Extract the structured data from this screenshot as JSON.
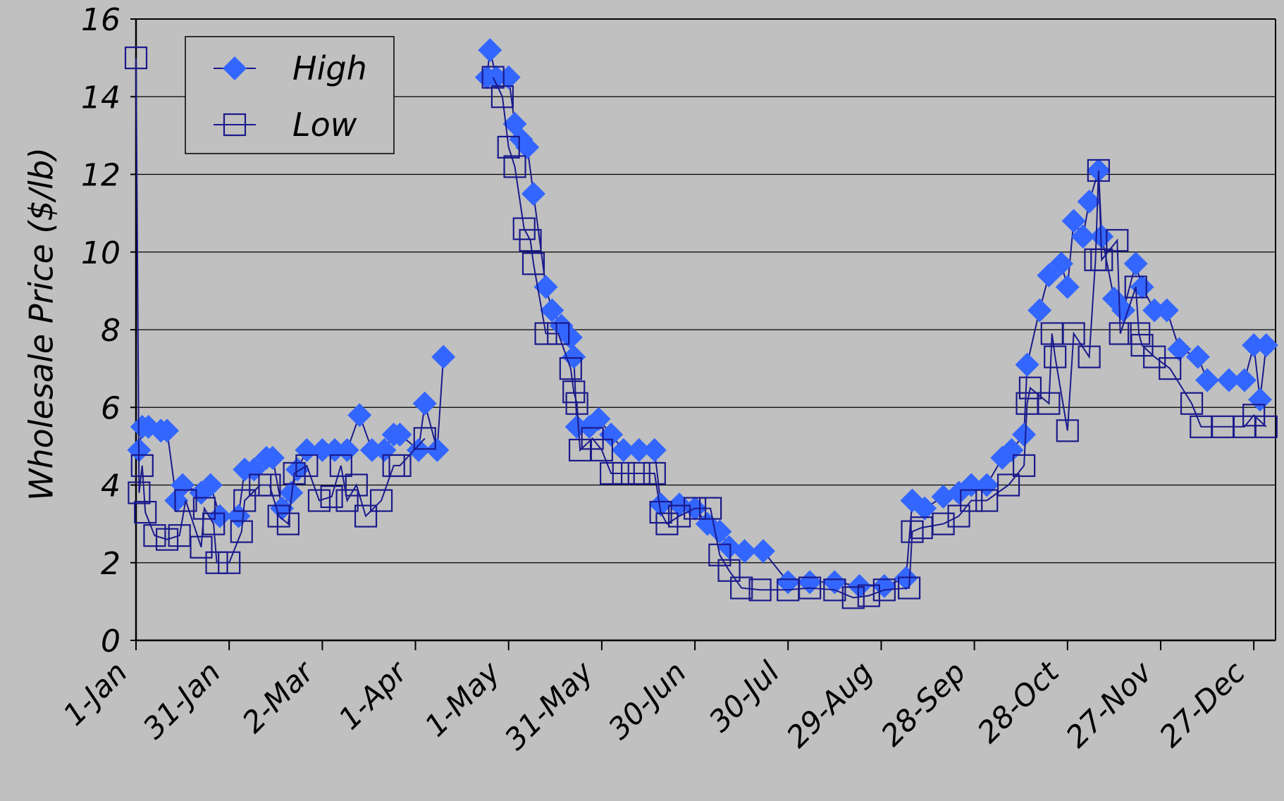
{
  "chart_data": {
    "type": "line",
    "ylabel": "Wholesale Price ($/lb)",
    "xlim": [
      0,
      367
    ],
    "ylim": [
      0,
      16
    ],
    "xticks": [
      {
        "value": 0,
        "label": "1-Jan"
      },
      {
        "value": 30,
        "label": "31-Jan"
      },
      {
        "value": 60,
        "label": "2-Mar"
      },
      {
        "value": 90,
        "label": "1-Apr"
      },
      {
        "value": 120,
        "label": "1-May"
      },
      {
        "value": 150,
        "label": "31-May"
      },
      {
        "value": 180,
        "label": "30-Jun"
      },
      {
        "value": 210,
        "label": "30-Jul"
      },
      {
        "value": 240,
        "label": "29-Aug"
      },
      {
        "value": 270,
        "label": "28-Sep"
      },
      {
        "value": 300,
        "label": "28-Oct"
      },
      {
        "value": 330,
        "label": "27-Nov"
      },
      {
        "value": 360,
        "label": "27-Dec"
      }
    ],
    "yticks": [
      0,
      2,
      4,
      6,
      8,
      10,
      12,
      14,
      16
    ],
    "grid": true,
    "legend": "upper left",
    "series": [
      {
        "name": "High",
        "color": "#3366ff",
        "marker": "diamond",
        "x": [
          1,
          2,
          4,
          8,
          10,
          13,
          15,
          21,
          24,
          27,
          33,
          35,
          38,
          42,
          44,
          47,
          50,
          52,
          55,
          60,
          64,
          68,
          72,
          76,
          80,
          83,
          85,
          91,
          93,
          97,
          99,
          106,
          113,
          114,
          116,
          120,
          122,
          124,
          126,
          128,
          132,
          134,
          137,
          140,
          141,
          142,
          146,
          149,
          153,
          157,
          162,
          167,
          169,
          175,
          180,
          184,
          188,
          191,
          196,
          202,
          210,
          217,
          225,
          233,
          241,
          248,
          250,
          254,
          260,
          265,
          269,
          274,
          279,
          282,
          286,
          287,
          291,
          294,
          298,
          300,
          302,
          305,
          307,
          310,
          311,
          315,
          318,
          322,
          324,
          328,
          332,
          336,
          342,
          345,
          352,
          357,
          360,
          362,
          364
        ],
        "values": [
          4.9,
          5.5,
          5.5,
          5.4,
          5.4,
          3.6,
          4.0,
          3.8,
          4.0,
          3.2,
          3.2,
          4.4,
          4.4,
          4.7,
          4.7,
          3.4,
          3.8,
          4.4,
          4.9,
          4.9,
          4.9,
          4.9,
          5.8,
          4.9,
          4.9,
          5.3,
          5.3,
          4.9,
          6.1,
          4.9,
          7.3,
          null,
          14.5,
          15.2,
          14.5,
          14.5,
          13.3,
          12.9,
          12.7,
          11.5,
          9.1,
          8.5,
          8.1,
          7.8,
          7.3,
          5.5,
          5.5,
          5.7,
          5.3,
          4.9,
          4.9,
          4.9,
          3.5,
          3.5,
          3.4,
          3.0,
          2.8,
          2.4,
          2.3,
          2.3,
          1.5,
          1.5,
          1.5,
          1.4,
          1.4,
          1.6,
          3.6,
          3.4,
          3.7,
          3.8,
          4.0,
          4.0,
          4.7,
          4.9,
          5.3,
          7.1,
          8.5,
          9.4,
          9.7,
          9.1,
          10.8,
          10.4,
          11.3,
          12.1,
          10.4,
          8.8,
          8.5,
          9.7,
          9.1,
          8.5,
          8.5,
          7.5,
          7.3,
          6.7,
          6.7,
          6.7,
          7.6,
          6.2,
          7.6
        ]
      },
      {
        "name": "Low",
        "color": "#1a1a8c",
        "marker": "square",
        "x": [
          0,
          1,
          2,
          3,
          6,
          10,
          14,
          16,
          21,
          22,
          25,
          26,
          30,
          34,
          35,
          40,
          43,
          46,
          49,
          51,
          55,
          59,
          63,
          66,
          68,
          71,
          74,
          79,
          83,
          85,
          93,
          104,
          115,
          118,
          120,
          122,
          125,
          127,
          128,
          132,
          136,
          140,
          141,
          142,
          143,
          147,
          150,
          153,
          157,
          162,
          167,
          169,
          171,
          175,
          180,
          185,
          188,
          191,
          195,
          201,
          210,
          217,
          225,
          231,
          236,
          241,
          249,
          250,
          253,
          260,
          265,
          269,
          274,
          281,
          286,
          287,
          288,
          294,
          295,
          296,
          300,
          302,
          307,
          309,
          310,
          311,
          316,
          317,
          322,
          323,
          324,
          328,
          333,
          340,
          343,
          350,
          357,
          360,
          364
        ],
        "values": [
          15.0,
          3.8,
          4.5,
          3.3,
          2.7,
          2.6,
          2.7,
          3.6,
          2.4,
          3.4,
          3.0,
          2.0,
          2.0,
          2.8,
          3.6,
          4.0,
          4.0,
          3.2,
          3.0,
          4.3,
          4.5,
          3.6,
          3.7,
          4.5,
          3.6,
          4.0,
          3.2,
          3.6,
          4.5,
          4.5,
          5.2,
          null,
          14.5,
          14.0,
          12.7,
          12.2,
          10.6,
          10.3,
          9.7,
          7.9,
          7.9,
          7.0,
          6.4,
          6.1,
          4.9,
          5.2,
          4.9,
          4.3,
          4.3,
          4.3,
          4.3,
          3.3,
          3.0,
          3.2,
          3.4,
          3.4,
          2.2,
          1.8,
          1.35,
          1.3,
          1.3,
          1.35,
          1.3,
          1.1,
          1.15,
          1.3,
          1.35,
          2.8,
          2.9,
          3.0,
          3.2,
          3.6,
          3.6,
          4.0,
          4.5,
          6.1,
          6.5,
          6.1,
          7.9,
          7.3,
          5.4,
          7.9,
          7.3,
          9.8,
          12.1,
          9.8,
          10.3,
          7.9,
          9.1,
          7.9,
          7.6,
          7.3,
          7.0,
          6.1,
          5.5,
          5.5,
          5.5,
          5.8,
          5.5
        ]
      }
    ]
  }
}
